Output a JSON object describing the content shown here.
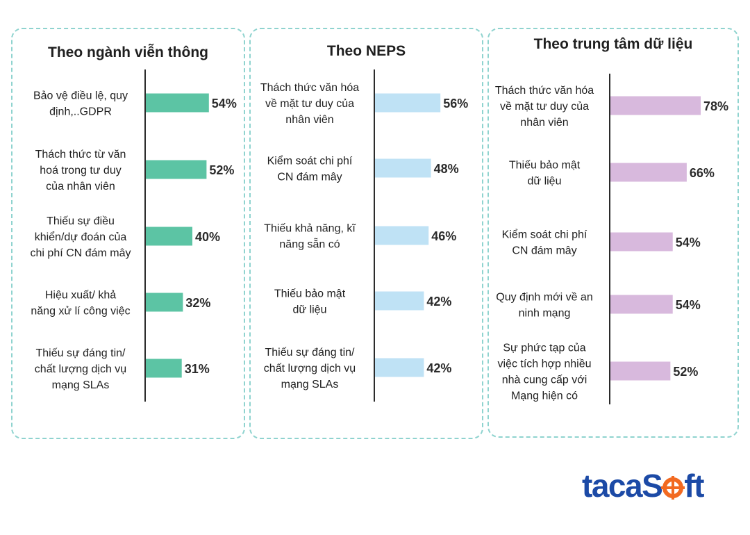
{
  "colors": {
    "panel_border": "#8fd3cf",
    "axis": "#2b2b2b"
  },
  "chart_data": [
    {
      "type": "bar",
      "orientation": "horizontal",
      "title": "Theo ngành viễn thông",
      "color": "#5cc4a4",
      "unit": "%",
      "categories": [
        [
          "Bảo vệ điều lệ, quy",
          "định,..GDPR"
        ],
        [
          "Thách thức từ văn",
          "hoá trong tư duy",
          "của nhân viên"
        ],
        [
          "Thiếu sự điều",
          "khiển/dự đoán của",
          "chi phí CN đám mây"
        ],
        [
          "Hiệu xuất/ khả",
          "năng xử lí công việc"
        ],
        [
          "Thiếu sự đáng tin/",
          "chất lượng dịch vụ",
          "mạng SLAs"
        ]
      ],
      "values": [
        54,
        52,
        40,
        32,
        31
      ],
      "value_labels": [
        "54%",
        "52%",
        "40%",
        "32%",
        "31%"
      ]
    },
    {
      "type": "bar",
      "orientation": "horizontal",
      "title": "Theo NEPS",
      "color": "#bfe2f5",
      "unit": "%",
      "categories": [
        [
          "Thách thức văn hóa",
          "về mặt tư duy của",
          "nhân viên"
        ],
        [
          "Kiểm soát chi phí",
          "CN đám mây"
        ],
        [
          "Thiếu khả năng, kĩ",
          "năng sẵn có"
        ],
        [
          "Thiếu bảo mật",
          "dữ liệu"
        ],
        [
          "Thiếu sự đáng tin/",
          "chất lượng dịch vụ",
          "mạng SLAs"
        ]
      ],
      "values": [
        56,
        48,
        46,
        42,
        42
      ],
      "value_labels": [
        "56%",
        "48%",
        "46%",
        "42%",
        "42%"
      ]
    },
    {
      "type": "bar",
      "orientation": "horizontal",
      "title": "Theo trung tâm dữ liệu",
      "color": "#d8b9dd",
      "unit": "%",
      "categories": [
        [
          "Thách thức văn hóa",
          "về mặt tư duy của",
          "nhân viên"
        ],
        [
          "Thiếu bảo mật",
          "dữ liệu"
        ],
        [
          "Kiểm soát chi phí",
          "CN đám mây"
        ],
        [
          "Quy định mới về an",
          "ninh mạng"
        ],
        [
          "Sự phức tạp của",
          "việc tích hợp nhiều",
          "nhà cung cấp với",
          "Mạng hiện có"
        ]
      ],
      "values": [
        78,
        66,
        54,
        54,
        52
      ],
      "value_labels": [
        "78%",
        "66%",
        "54%",
        "54%",
        "52%"
      ]
    }
  ],
  "logo": {
    "part1": "taca",
    "part2": "S",
    "part3": "ft",
    "brand_color": "#1c4aa6",
    "accent_color": "#f26a21"
  }
}
